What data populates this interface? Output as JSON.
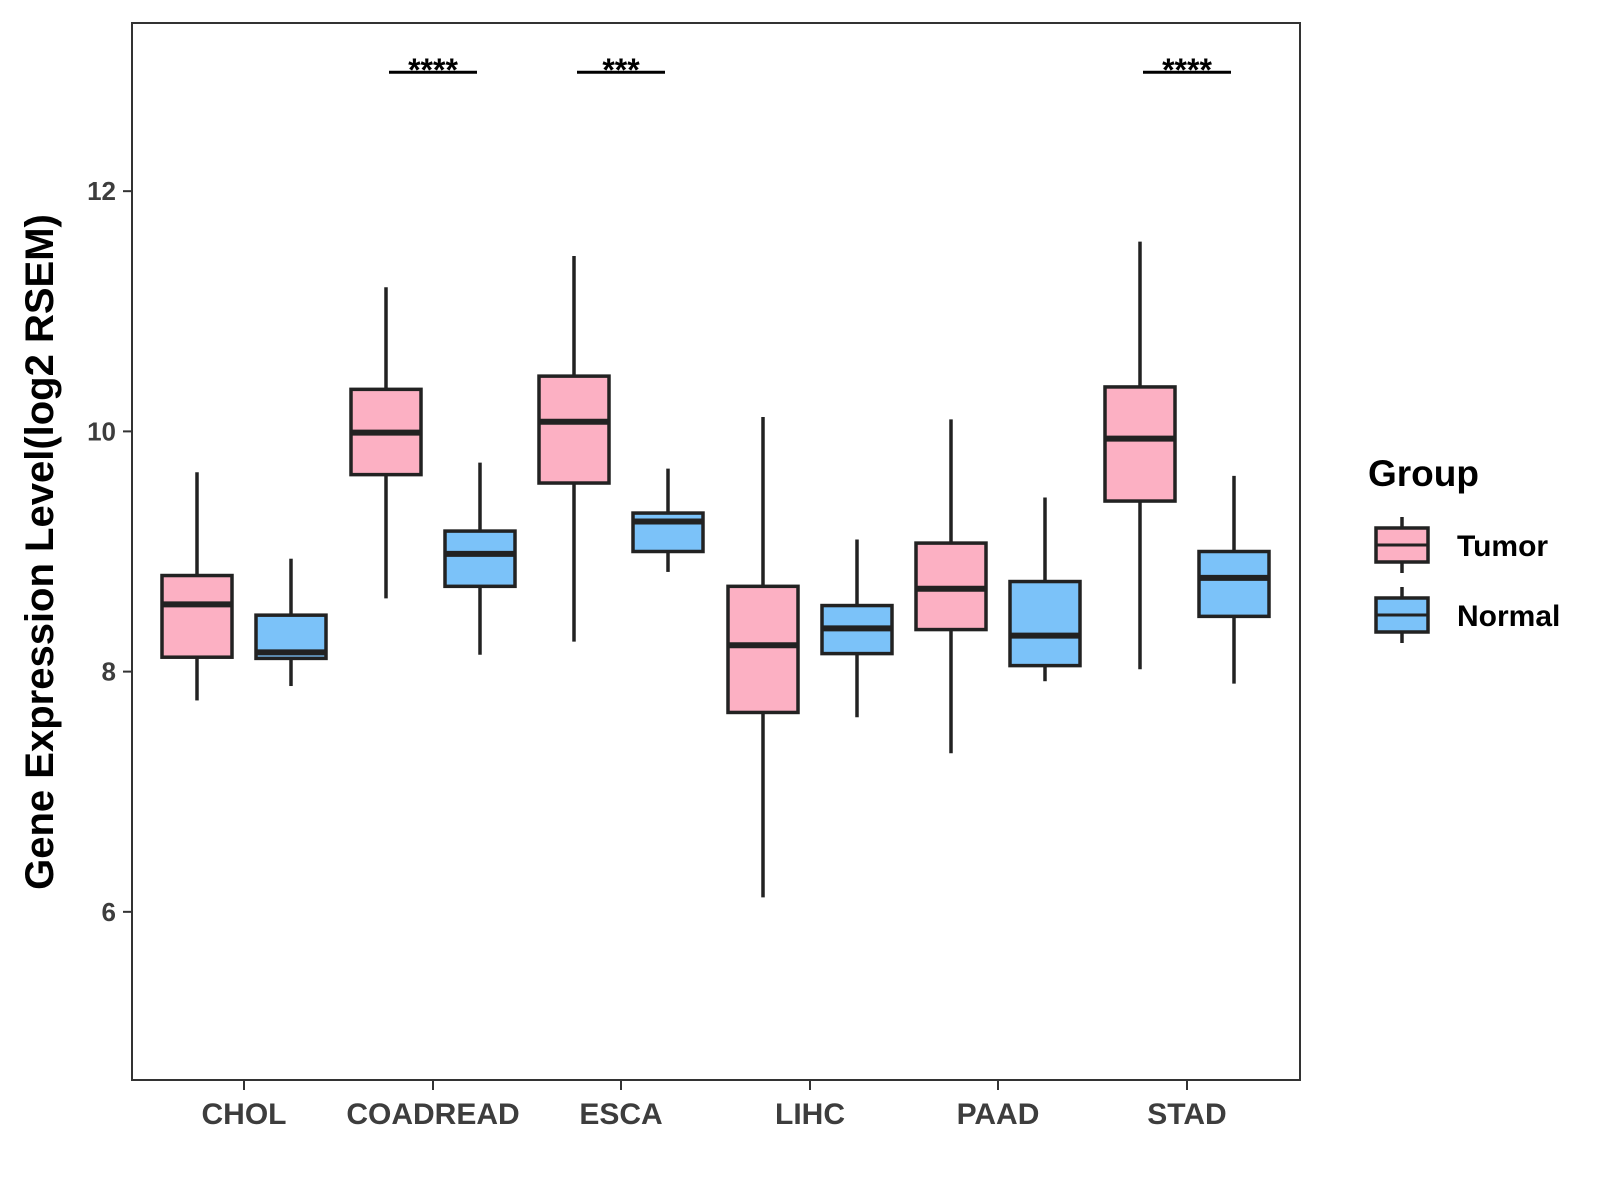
{
  "chart_data": {
    "type": "box",
    "ylabel": "Gene Expression Level(log2 RSEM)",
    "xlabel": "",
    "ylim": [
      4.6,
      13.4
    ],
    "yticks": [
      6,
      8,
      10,
      12
    ],
    "grid": false,
    "categories": [
      "CHOL",
      "COADREAD",
      "ESCA",
      "LIHC",
      "PAAD",
      "STAD"
    ],
    "legend": {
      "title": "Group",
      "position": "right",
      "entries": [
        {
          "name": "Tumor",
          "color": "#FCB0C3"
        },
        {
          "name": "Normal",
          "color": "#7BC2F9"
        }
      ]
    },
    "series": [
      {
        "name": "Tumor",
        "color": "#FCB0C3",
        "boxes": [
          {
            "whislo": 7.76,
            "q1": 8.12,
            "med": 8.56,
            "q3": 8.8,
            "whishi": 9.66
          },
          {
            "whislo": 8.61,
            "q1": 9.64,
            "med": 9.99,
            "q3": 10.35,
            "whishi": 11.2
          },
          {
            "whislo": 8.25,
            "q1": 9.57,
            "med": 10.08,
            "q3": 10.46,
            "whishi": 11.46
          },
          {
            "whislo": 6.12,
            "q1": 7.66,
            "med": 8.22,
            "q3": 8.71,
            "whishi": 10.12
          },
          {
            "whislo": 7.32,
            "q1": 8.35,
            "med": 8.69,
            "q3": 9.07,
            "whishi": 10.1
          },
          {
            "whislo": 8.02,
            "q1": 9.42,
            "med": 9.94,
            "q3": 10.37,
            "whishi": 11.58
          }
        ]
      },
      {
        "name": "Normal",
        "color": "#7BC2F9",
        "boxes": [
          {
            "whislo": 7.88,
            "q1": 8.11,
            "med": 8.16,
            "q3": 8.47,
            "whishi": 8.94
          },
          {
            "whislo": 8.14,
            "q1": 8.71,
            "med": 8.98,
            "q3": 9.17,
            "whishi": 9.74
          },
          {
            "whislo": 8.83,
            "q1": 9.0,
            "med": 9.25,
            "q3": 9.32,
            "whishi": 9.69
          },
          {
            "whislo": 7.62,
            "q1": 8.15,
            "med": 8.36,
            "q3": 8.55,
            "whishi": 9.1
          },
          {
            "whislo": 7.92,
            "q1": 8.05,
            "med": 8.3,
            "q3": 8.75,
            "whishi": 9.45
          },
          {
            "whislo": 7.9,
            "q1": 8.46,
            "med": 8.78,
            "q3": 9.0,
            "whishi": 9.63
          }
        ]
      }
    ],
    "annotations": [
      {
        "category": "COADREAD",
        "label": "****",
        "y": 12.99
      },
      {
        "category": "ESCA",
        "label": "***",
        "y": 12.99
      },
      {
        "category": "STAD",
        "label": "****",
        "y": 12.99
      }
    ]
  }
}
